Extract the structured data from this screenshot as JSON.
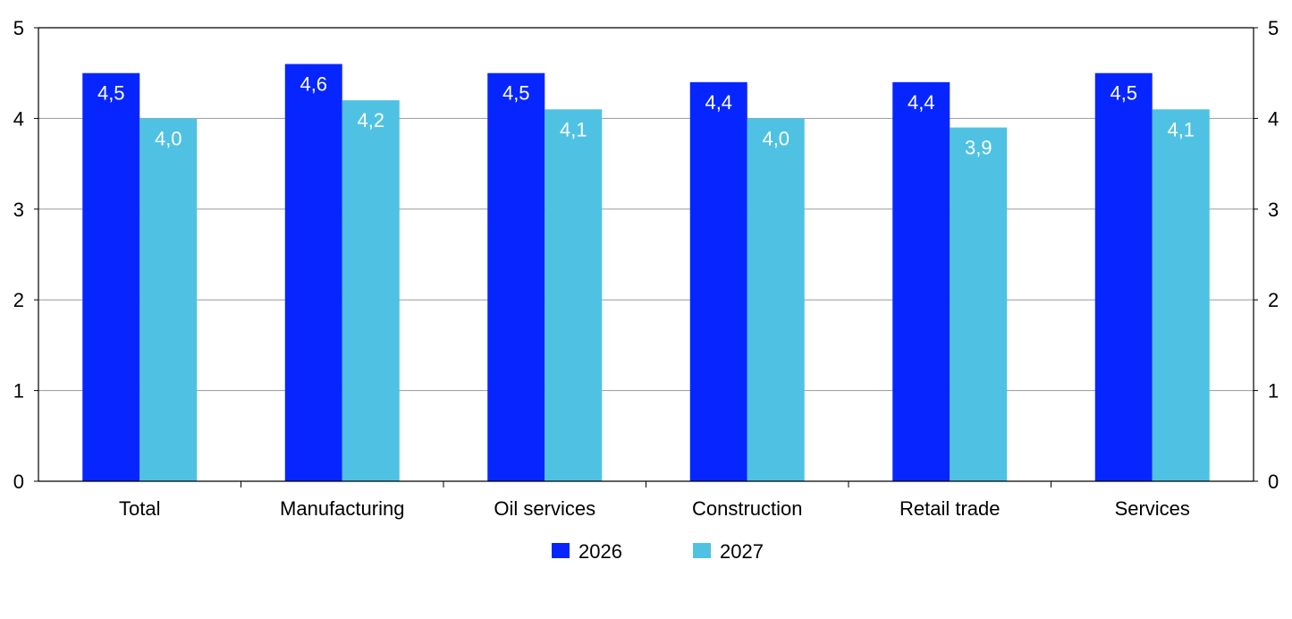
{
  "chart_data": {
    "type": "bar",
    "categories": [
      "Total",
      "Manufacturing",
      "Oil services",
      "Construction",
      "Retail trade",
      "Services"
    ],
    "series": [
      {
        "name": "2026",
        "color": "#0726ff",
        "values": [
          4.5,
          4.6,
          4.5,
          4.4,
          4.4,
          4.5
        ],
        "labels": [
          "4,5",
          "4,6",
          "4,5",
          "4,4",
          "4,4",
          "4,5"
        ]
      },
      {
        "name": "2027",
        "color": "#4fc2e3",
        "values": [
          4.0,
          4.2,
          4.1,
          4.0,
          3.9,
          4.1
        ],
        "labels": [
          "4,0",
          "4,2",
          "4,1",
          "4,0",
          "3,9",
          "4,1"
        ]
      }
    ],
    "ylim": [
      0,
      5
    ],
    "yticks": [
      "0",
      "1",
      "2",
      "3",
      "4",
      "5"
    ],
    "grid": true,
    "legend_position": "bottom-center",
    "axes": "left-and-right"
  }
}
